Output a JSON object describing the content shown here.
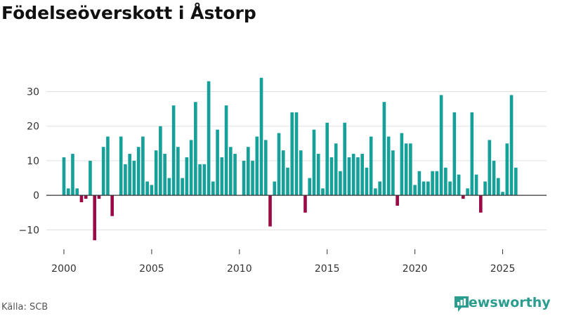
{
  "title": "Födelseöverskott i Åstorp",
  "source": "Källa: SCB",
  "brand": "Newsworthy",
  "colors": {
    "positive": "#16a09a",
    "negative": "#9b0a46",
    "grid": "#e0e0e0",
    "axis": "#333333",
    "brand": "#2a9d8f"
  },
  "chart_data": {
    "type": "bar",
    "ylim": [
      -15,
      37
    ],
    "xlim": [
      1999,
      2027.5
    ],
    "yticks": [
      -10,
      0,
      10,
      20,
      30
    ],
    "ytick_labels": [
      "−10",
      "0",
      "10",
      "20",
      "30"
    ],
    "xticks": [
      2000,
      2005,
      2010,
      2015,
      2020,
      2025
    ],
    "xtick_labels": [
      "2000",
      "2005",
      "2010",
      "2015",
      "2020",
      "2025"
    ],
    "grid": true,
    "x_start": 2000,
    "x_step": 0.25,
    "values": [
      11,
      2,
      12,
      2,
      -2,
      -1,
      10,
      -13,
      -1,
      14,
      17,
      -6,
      0,
      17,
      9,
      12,
      10,
      14,
      17,
      4,
      3,
      13,
      20,
      12,
      5,
      26,
      14,
      5,
      11,
      16,
      27,
      9,
      9,
      33,
      4,
      19,
      11,
      26,
      14,
      12,
      0,
      10,
      14,
      10,
      17,
      34,
      16,
      -9,
      4,
      18,
      13,
      8,
      24,
      24,
      13,
      -5,
      5,
      19,
      12,
      2,
      21,
      11,
      15,
      7,
      21,
      11,
      12,
      11,
      12,
      8,
      17,
      2,
      4,
      27,
      17,
      13,
      -3,
      18,
      15,
      15,
      3,
      7,
      4,
      4,
      7,
      7,
      29,
      8,
      4,
      24,
      6,
      -1,
      2,
      24,
      6,
      -5,
      4,
      16,
      10,
      5,
      1,
      15,
      29,
      8
    ]
  }
}
